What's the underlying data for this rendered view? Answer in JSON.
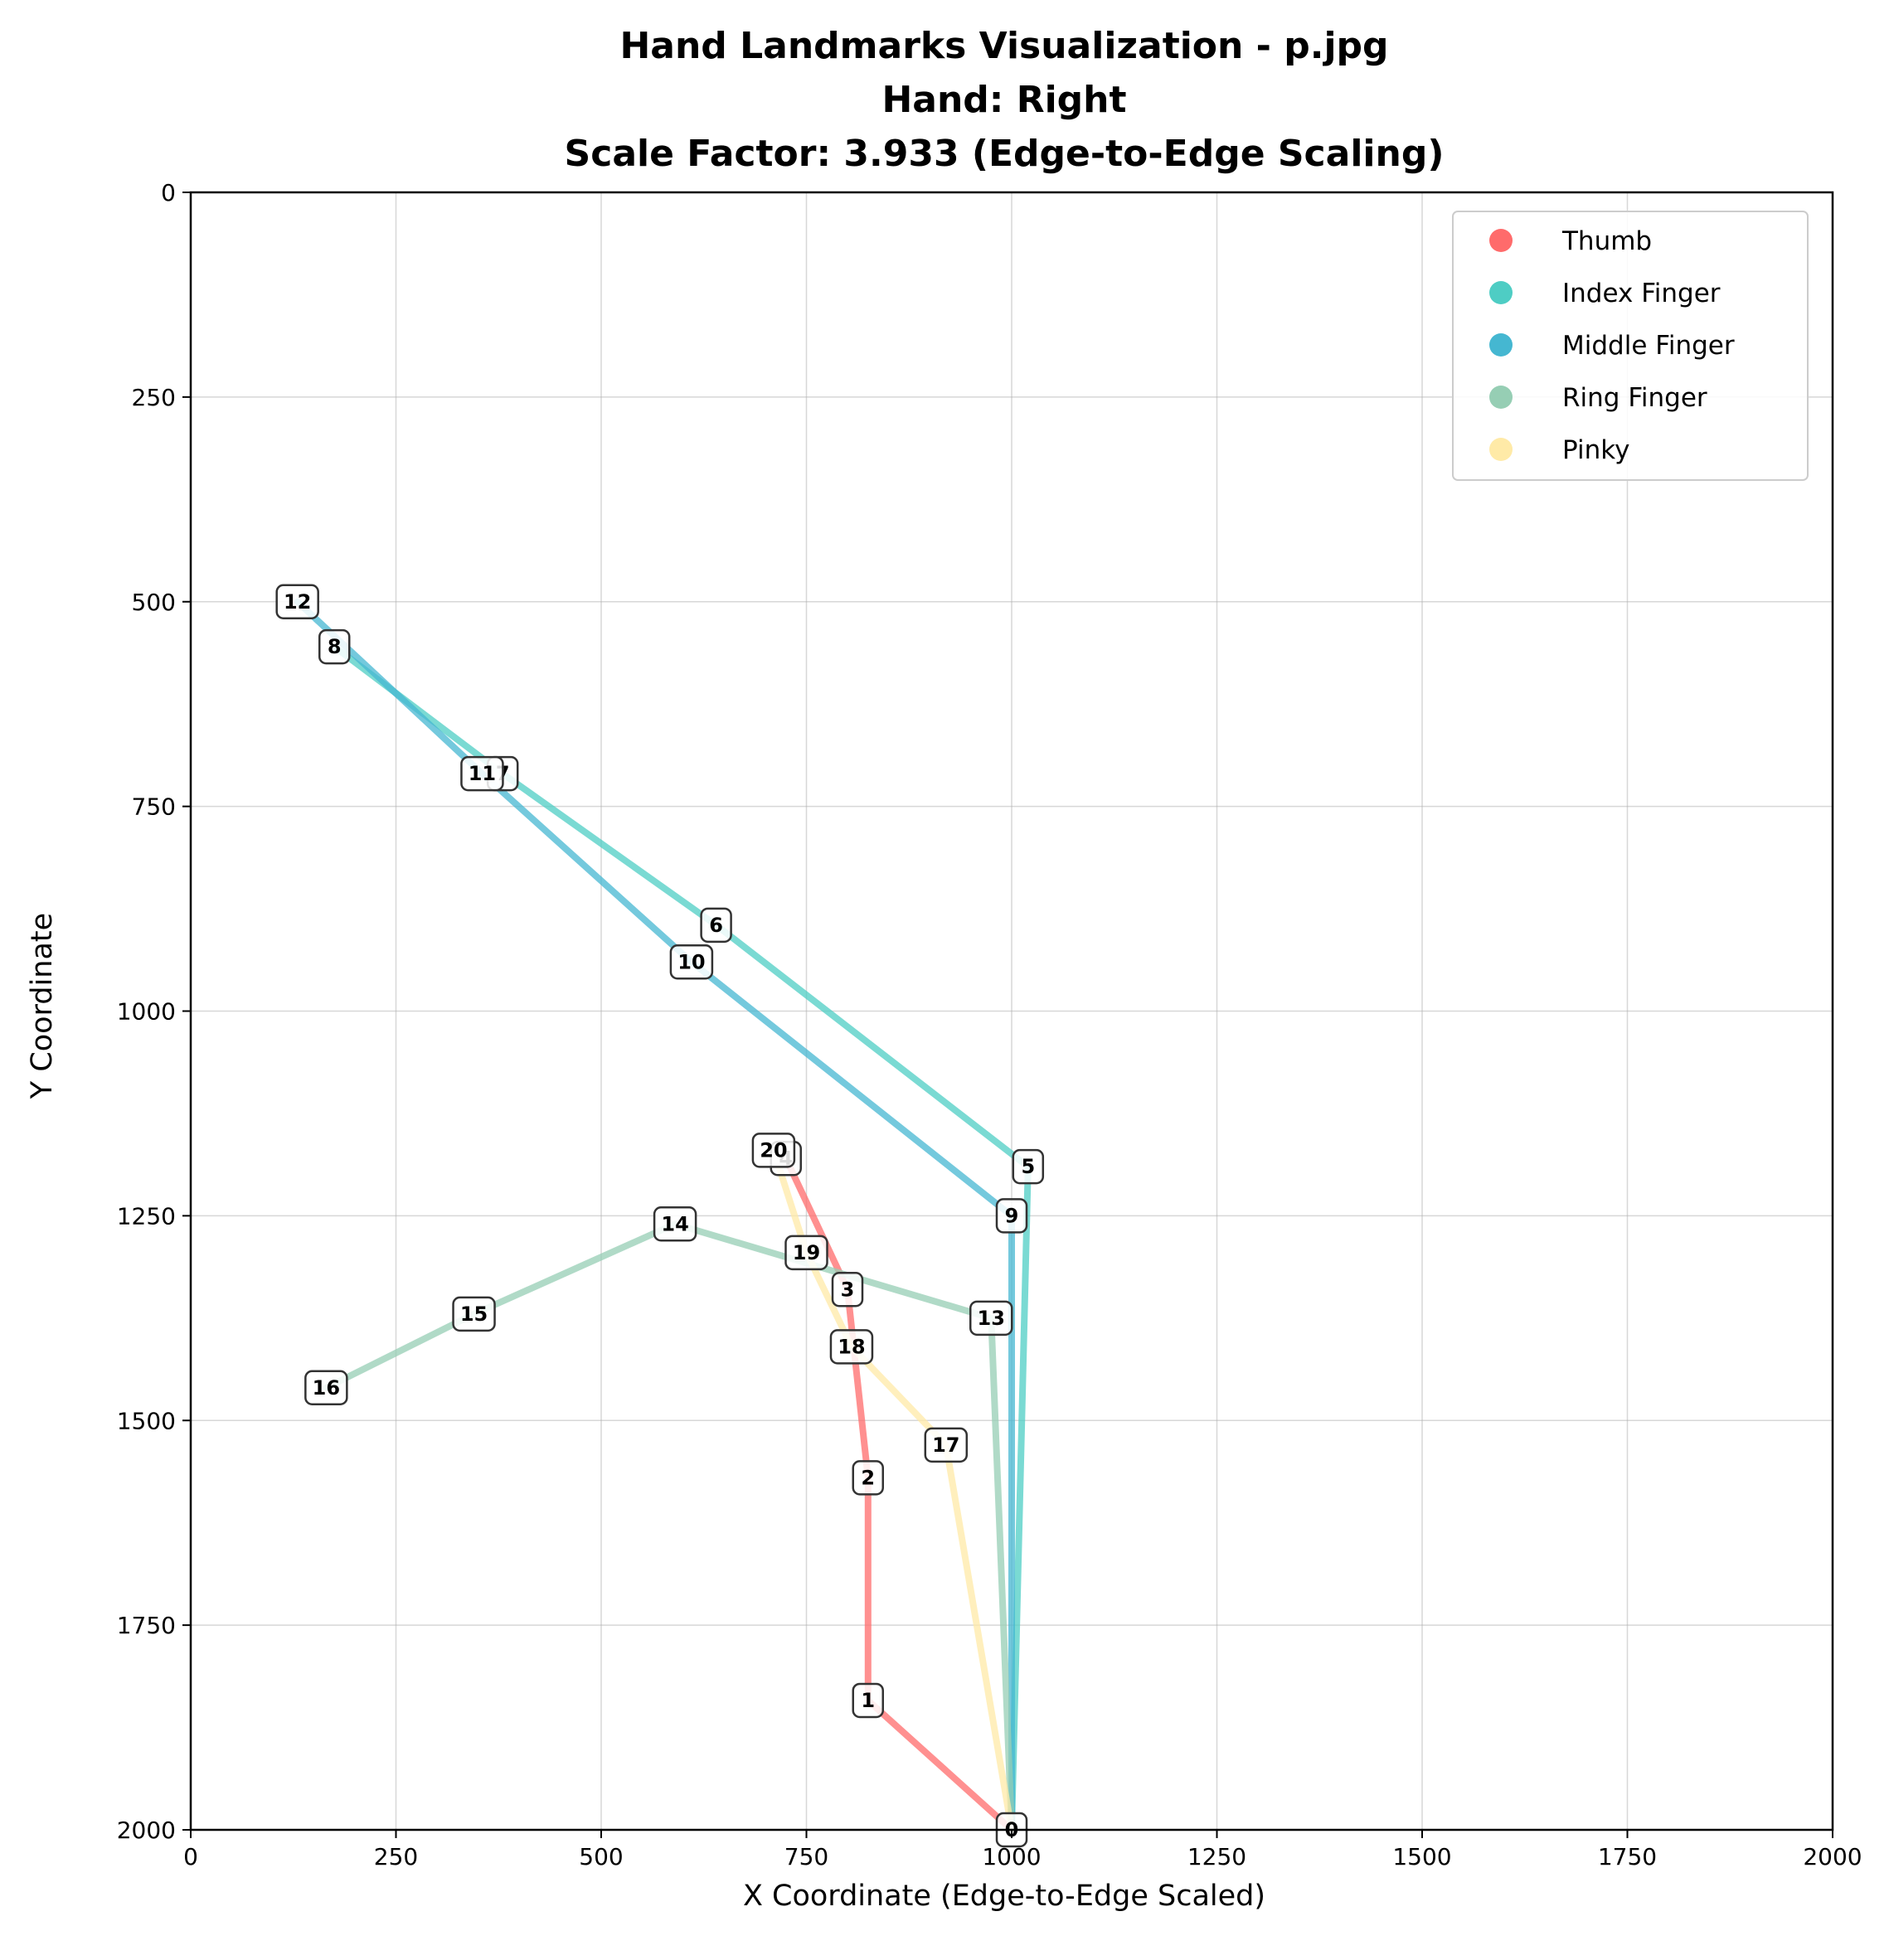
{
  "chart_data": {
    "type": "line",
    "title_lines": [
      "Hand Landmarks Visualization - p.jpg",
      "Hand: Right",
      "Scale Factor: 3.933 (Edge-to-Edge Scaling)"
    ],
    "xlabel": "X Coordinate (Edge-to-Edge Scaled)",
    "ylabel": "Y Coordinate",
    "xlim": [
      0,
      2000
    ],
    "ylim": [
      2000,
      0
    ],
    "y_inverted": true,
    "xticks": [
      "0",
      "250",
      "500",
      "750",
      "1000",
      "1250",
      "1500",
      "1750",
      "2000"
    ],
    "yticks": [
      "0",
      "250",
      "500",
      "750",
      "1000",
      "1250",
      "1500",
      "1750",
      "2000"
    ],
    "grid": true,
    "legend_position": "top-right",
    "landmarks": [
      {
        "id": "0",
        "x": 1000,
        "y": 2000
      },
      {
        "id": "1",
        "x": 825,
        "y": 1842
      },
      {
        "id": "2",
        "x": 825,
        "y": 1570
      },
      {
        "id": "3",
        "x": 800,
        "y": 1340
      },
      {
        "id": "4",
        "x": 725,
        "y": 1180
      },
      {
        "id": "5",
        "x": 1020,
        "y": 1190
      },
      {
        "id": "6",
        "x": 640,
        "y": 895
      },
      {
        "id": "7",
        "x": 380,
        "y": 710
      },
      {
        "id": "8",
        "x": 175,
        "y": 555
      },
      {
        "id": "9",
        "x": 1000,
        "y": 1250
      },
      {
        "id": "10",
        "x": 610,
        "y": 940
      },
      {
        "id": "11",
        "x": 355,
        "y": 710
      },
      {
        "id": "12",
        "x": 130,
        "y": 500
      },
      {
        "id": "13",
        "x": 975,
        "y": 1375
      },
      {
        "id": "14",
        "x": 590,
        "y": 1260
      },
      {
        "id": "15",
        "x": 345,
        "y": 1370
      },
      {
        "id": "16",
        "x": 165,
        "y": 1460
      },
      {
        "id": "17",
        "x": 920,
        "y": 1530
      },
      {
        "id": "18",
        "x": 805,
        "y": 1410
      },
      {
        "id": "19",
        "x": 750,
        "y": 1295
      },
      {
        "id": "20",
        "x": 710,
        "y": 1170
      }
    ],
    "series": [
      {
        "name": "Thumb",
        "color": "#FF6B6B",
        "points": [
          "0",
          "1",
          "2",
          "3",
          "4"
        ]
      },
      {
        "name": "Index Finger",
        "color": "#4ECDC4",
        "points": [
          "0",
          "5",
          "6",
          "7",
          "8"
        ]
      },
      {
        "name": "Middle Finger",
        "color": "#45B7D1",
        "points": [
          "0",
          "9",
          "10",
          "11",
          "12"
        ]
      },
      {
        "name": "Ring Finger",
        "color": "#96CEB4",
        "points": [
          "0",
          "13",
          "14",
          "15",
          "16"
        ]
      },
      {
        "name": "Pinky",
        "color": "#FFEAA7",
        "points": [
          "0",
          "17",
          "18",
          "19",
          "20"
        ]
      }
    ]
  }
}
